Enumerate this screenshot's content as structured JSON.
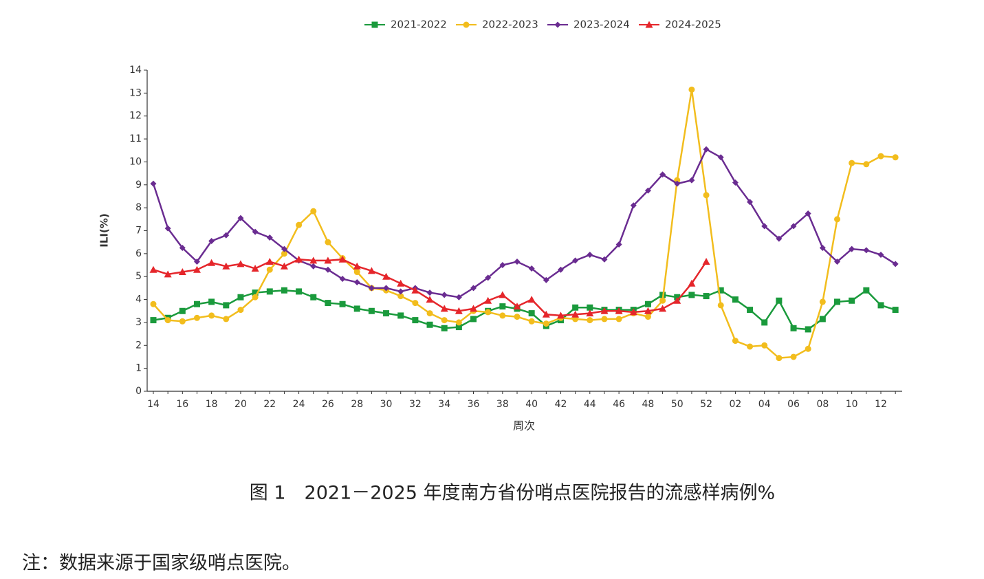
{
  "chart_data": {
    "type": "line",
    "categories": [
      "14",
      null,
      "16",
      null,
      "18",
      null,
      "20",
      null,
      "22",
      null,
      "24",
      null,
      "26",
      null,
      "28",
      null,
      "30",
      null,
      "32",
      null,
      "34",
      null,
      "36",
      null,
      "38",
      null,
      "40",
      null,
      "42",
      null,
      "44",
      null,
      "46",
      null,
      "48",
      null,
      "50",
      null,
      "52",
      null,
      "02",
      null,
      "04",
      null,
      "06",
      null,
      "08",
      null,
      "10",
      null,
      "12",
      null
    ],
    "x_label": "周次",
    "y_label": "ILI(%)",
    "ylim": [
      0,
      14
    ],
    "yticks": [
      0,
      1,
      2,
      3,
      4,
      5,
      6,
      7,
      8,
      9,
      10,
      11,
      12,
      13,
      14
    ],
    "grid": false,
    "legend": "top",
    "series": [
      {
        "name": "2021-2022",
        "color": "#1a9a3c",
        "marker": "square",
        "values": [
          3.1,
          3.2,
          3.5,
          3.8,
          3.9,
          3.75,
          4.1,
          4.3,
          4.35,
          4.4,
          4.35,
          4.1,
          3.85,
          3.8,
          3.6,
          3.5,
          3.4,
          3.3,
          3.1,
          2.9,
          2.75,
          2.8,
          3.15,
          3.5,
          3.7,
          3.6,
          3.4,
          2.85,
          3.1,
          3.65,
          3.65,
          3.55,
          3.55,
          3.55,
          3.8,
          4.2,
          4.1,
          4.2,
          4.15,
          4.4,
          4.0,
          3.55,
          3.0,
          3.95,
          2.75,
          2.7,
          3.15,
          3.9,
          3.95,
          4.4,
          3.75,
          3.55
        ]
      },
      {
        "name": "2022-2023",
        "color": "#f2bd1d",
        "marker": "circle",
        "values": [
          3.8,
          3.1,
          3.05,
          3.2,
          3.3,
          3.15,
          3.55,
          4.1,
          5.3,
          6.0,
          7.25,
          7.85,
          6.5,
          5.8,
          5.2,
          4.5,
          4.4,
          4.15,
          3.85,
          3.4,
          3.1,
          3.0,
          3.5,
          3.45,
          3.3,
          3.25,
          3.05,
          2.95,
          3.2,
          3.15,
          3.1,
          3.15,
          3.15,
          3.4,
          3.25,
          3.95,
          9.2,
          13.15,
          8.55,
          3.75,
          2.2,
          1.95,
          2.0,
          1.45,
          1.5,
          1.85,
          3.9,
          7.5,
          9.95,
          9.9,
          10.25,
          10.2
        ]
      },
      {
        "name": "2023-2024",
        "color": "#6a2c91",
        "marker": "diamond",
        "values": [
          9.05,
          7.1,
          6.25,
          5.65,
          6.55,
          6.8,
          7.55,
          6.95,
          6.7,
          6.2,
          5.7,
          5.45,
          5.3,
          4.9,
          4.75,
          4.5,
          4.5,
          4.35,
          4.5,
          4.3,
          4.2,
          4.1,
          4.5,
          4.95,
          5.5,
          5.65,
          5.35,
          4.85,
          5.3,
          5.7,
          5.95,
          5.75,
          6.4,
          8.1,
          8.75,
          9.45,
          9.05,
          9.2,
          10.55,
          10.2,
          9.1,
          8.25,
          7.2,
          6.65,
          7.2,
          7.75,
          6.25,
          5.65,
          6.2,
          6.15,
          5.95,
          5.55
        ]
      },
      {
        "name": "2024-2025",
        "color": "#e5262b",
        "marker": "triangle",
        "values": [
          5.3,
          5.1,
          5.2,
          5.3,
          5.6,
          5.45,
          5.55,
          5.35,
          5.65,
          5.45,
          5.75,
          5.7,
          5.7,
          5.75,
          5.45,
          5.25,
          5.0,
          4.7,
          4.4,
          4.0,
          3.6,
          3.5,
          3.6,
          3.95,
          4.2,
          3.7,
          4.0,
          3.35,
          3.3,
          3.35,
          3.4,
          3.5,
          3.5,
          3.45,
          3.5,
          3.6,
          3.95,
          4.7,
          5.65,
          null,
          null,
          null,
          null,
          null,
          null,
          null,
          null,
          null,
          null,
          null,
          null,
          null
        ]
      }
    ]
  },
  "caption": "图 1　2021－2025 年度南方省份哨点医院报告的流感样病例%",
  "note": "注：数据来源于国家级哨点医院。"
}
